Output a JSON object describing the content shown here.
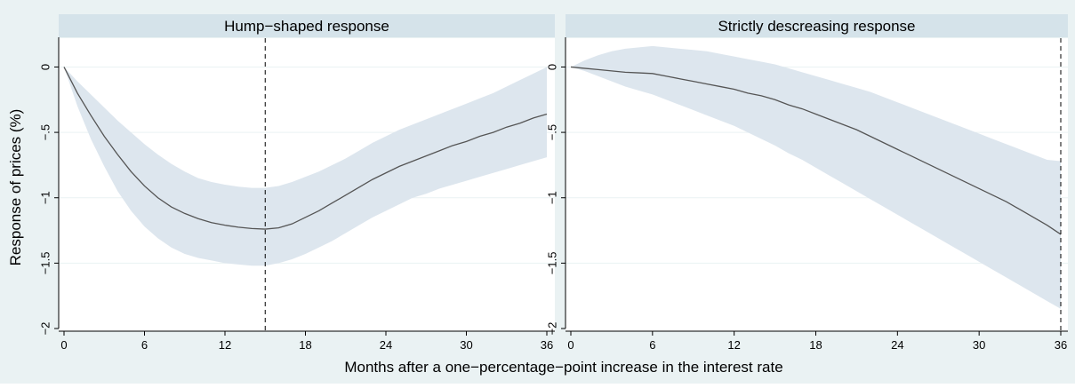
{
  "chart_data": {
    "type": "line",
    "xlabel": "Months after a one−percentage−point increase in the interest rate",
    "ylabel": "Response of prices (%)",
    "colors": {
      "background": "#eaf2f3",
      "strip": "#d5e3ea",
      "band": "#dde6ee",
      "line": "#555555",
      "grid": "#eaf2f3",
      "plot_bg": "#ffffff"
    },
    "panels": [
      {
        "title": "Hump−shaped response",
        "xlim": [
          0,
          36
        ],
        "ylim": [
          -2,
          0.2
        ],
        "xticks": [
          0,
          6,
          12,
          18,
          24,
          30,
          36
        ],
        "xtick_labels": [
          "0",
          "6",
          "12",
          "18",
          "24",
          "30",
          "36"
        ],
        "yticks": [
          0,
          -0.5,
          -1,
          -1.5,
          -2
        ],
        "ytick_labels": [
          "0",
          "−.5",
          "−1",
          "−1.5",
          "−2"
        ],
        "vline": 15,
        "x": [
          0,
          1,
          2,
          3,
          4,
          5,
          6,
          7,
          8,
          9,
          10,
          11,
          12,
          13,
          14,
          15,
          16,
          17,
          18,
          19,
          20,
          21,
          22,
          23,
          24,
          25,
          26,
          27,
          28,
          29,
          30,
          31,
          32,
          33,
          34,
          35,
          36
        ],
        "estimate": [
          0,
          -0.2,
          -0.37,
          -0.53,
          -0.67,
          -0.8,
          -0.91,
          -1.0,
          -1.07,
          -1.12,
          -1.16,
          -1.19,
          -1.21,
          -1.225,
          -1.235,
          -1.24,
          -1.23,
          -1.2,
          -1.15,
          -1.1,
          -1.04,
          -0.98,
          -0.92,
          -0.86,
          -0.81,
          -0.76,
          -0.72,
          -0.68,
          -0.64,
          -0.6,
          -0.57,
          -0.53,
          -0.5,
          -0.46,
          -0.43,
          -0.39,
          -0.36
        ],
        "lower": [
          0,
          -0.3,
          -0.55,
          -0.76,
          -0.95,
          -1.1,
          -1.22,
          -1.31,
          -1.38,
          -1.43,
          -1.46,
          -1.48,
          -1.5,
          -1.51,
          -1.52,
          -1.52,
          -1.5,
          -1.47,
          -1.43,
          -1.38,
          -1.33,
          -1.27,
          -1.21,
          -1.15,
          -1.1,
          -1.05,
          -1.0,
          -0.97,
          -0.93,
          -0.9,
          -0.87,
          -0.84,
          -0.81,
          -0.78,
          -0.75,
          -0.72,
          -0.69
        ],
        "upper": [
          0,
          -0.11,
          -0.21,
          -0.31,
          -0.41,
          -0.5,
          -0.59,
          -0.67,
          -0.74,
          -0.8,
          -0.85,
          -0.88,
          -0.9,
          -0.915,
          -0.925,
          -0.925,
          -0.91,
          -0.88,
          -0.84,
          -0.8,
          -0.75,
          -0.7,
          -0.64,
          -0.58,
          -0.53,
          -0.48,
          -0.44,
          -0.4,
          -0.36,
          -0.32,
          -0.28,
          -0.24,
          -0.2,
          -0.15,
          -0.1,
          -0.05,
          0.0
        ]
      },
      {
        "title": "Strictly descreasing response",
        "xlim": [
          0,
          36
        ],
        "ylim": [
          -2,
          0.2
        ],
        "xticks": [
          0,
          6,
          12,
          18,
          24,
          30,
          36
        ],
        "xtick_labels": [
          "0",
          "6",
          "12",
          "18",
          "24",
          "30",
          "36"
        ],
        "yticks": [
          0,
          -0.5,
          -1,
          -1.5,
          -2
        ],
        "ytick_labels": [
          "0",
          "−.5",
          "−1",
          "−1.5",
          "−2"
        ],
        "vline": 36,
        "x": [
          0,
          1,
          2,
          3,
          4,
          5,
          6,
          7,
          8,
          9,
          10,
          11,
          12,
          13,
          14,
          15,
          16,
          17,
          18,
          19,
          20,
          21,
          22,
          23,
          24,
          25,
          26,
          27,
          28,
          29,
          30,
          31,
          32,
          33,
          34,
          35,
          36
        ],
        "estimate": [
          0,
          -0.01,
          -0.02,
          -0.03,
          -0.04,
          -0.045,
          -0.05,
          -0.07,
          -0.09,
          -0.11,
          -0.13,
          -0.15,
          -0.17,
          -0.2,
          -0.22,
          -0.25,
          -0.29,
          -0.32,
          -0.36,
          -0.4,
          -0.44,
          -0.48,
          -0.53,
          -0.58,
          -0.63,
          -0.68,
          -0.73,
          -0.78,
          -0.83,
          -0.88,
          -0.93,
          -0.98,
          -1.03,
          -1.09,
          -1.15,
          -1.21,
          -1.28
        ],
        "lower": [
          0,
          -0.03,
          -0.07,
          -0.11,
          -0.15,
          -0.18,
          -0.21,
          -0.25,
          -0.29,
          -0.33,
          -0.37,
          -0.41,
          -0.45,
          -0.5,
          -0.55,
          -0.6,
          -0.66,
          -0.71,
          -0.77,
          -0.83,
          -0.89,
          -0.95,
          -1.01,
          -1.07,
          -1.13,
          -1.19,
          -1.25,
          -1.31,
          -1.37,
          -1.43,
          -1.49,
          -1.55,
          -1.61,
          -1.67,
          -1.73,
          -1.79,
          -1.85
        ],
        "upper": [
          0,
          0.05,
          0.09,
          0.12,
          0.14,
          0.15,
          0.16,
          0.15,
          0.14,
          0.13,
          0.12,
          0.1,
          0.08,
          0.06,
          0.04,
          0.02,
          -0.01,
          -0.04,
          -0.07,
          -0.1,
          -0.13,
          -0.16,
          -0.19,
          -0.23,
          -0.27,
          -0.31,
          -0.35,
          -0.39,
          -0.43,
          -0.47,
          -0.51,
          -0.55,
          -0.59,
          -0.63,
          -0.67,
          -0.71,
          -0.72
        ]
      }
    ]
  }
}
